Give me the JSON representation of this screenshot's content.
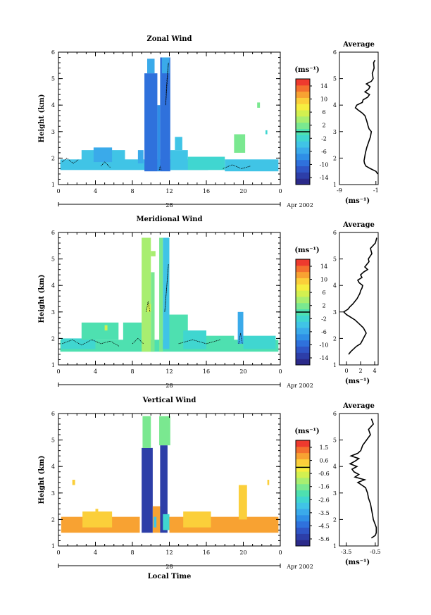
{
  "colors": {
    "colorbar": [
      "#2b2a8a",
      "#2d3ea8",
      "#2f55c6",
      "#2f71dc",
      "#2f8fe6",
      "#3aaaea",
      "#40c4e6",
      "#40d6d0",
      "#4ee0b0",
      "#7ae890",
      "#a8ee70",
      "#d2f050",
      "#f6ee40",
      "#fbcf3a",
      "#f8a232",
      "#f4702e",
      "#ee3a2e"
    ],
    "contour": "#000000",
    "axis": "#000000",
    "background": "#ffffff"
  },
  "chart_data": [
    {
      "type": "heatmap",
      "title": "Zonal Wind",
      "ylabel": "Height (km)",
      "xlim": [
        0,
        24
      ],
      "ylim": [
        1,
        6
      ],
      "x_ticks": [
        "0",
        "4",
        "8",
        "12",
        "16",
        "20",
        "0"
      ],
      "y_ticks": [
        "1",
        "2",
        "3",
        "4",
        "5",
        "6"
      ],
      "date_day": "28",
      "date_label": "Apr 2002",
      "colorbar": {
        "unit": "(ms⁻¹)",
        "ticks": [
          "14",
          "10",
          "6",
          "2",
          "-2",
          "-6",
          "-10",
          "-14"
        ],
        "range": [
          -16,
          16
        ]
      },
      "blocks": [
        {
          "x0": 0.2,
          "x1": 16.2,
          "y0": 1.55,
          "y1": 1.95,
          "v": -3
        },
        {
          "x0": 2.5,
          "x1": 7.2,
          "y0": 1.9,
          "y1": 2.3,
          "v": -4
        },
        {
          "x0": 3.8,
          "x1": 5.8,
          "y0": 1.85,
          "y1": 2.4,
          "v": -6
        },
        {
          "x0": 8.6,
          "x1": 9.2,
          "y0": 1.8,
          "y1": 2.3,
          "v": -6
        },
        {
          "x0": 9.3,
          "x1": 10.7,
          "y0": 1.5,
          "y1": 5.2,
          "v": -10
        },
        {
          "x0": 9.6,
          "x1": 10.4,
          "y0": 5.2,
          "y1": 5.75,
          "v": -6
        },
        {
          "x0": 10.7,
          "x1": 11.0,
          "y0": 1.5,
          "y1": 4.0,
          "v": -8
        },
        {
          "x0": 11.0,
          "x1": 12.1,
          "y0": 1.5,
          "y1": 5.8,
          "v": -10
        },
        {
          "x0": 11.2,
          "x1": 12.0,
          "y0": 5.2,
          "y1": 5.8,
          "v": -6
        },
        {
          "x0": 12.1,
          "x1": 14.0,
          "y0": 1.55,
          "y1": 2.3,
          "v": -4
        },
        {
          "x0": 12.6,
          "x1": 13.4,
          "y0": 2.3,
          "y1": 2.8,
          "v": -3
        },
        {
          "x0": 14.0,
          "x1": 18.0,
          "y0": 1.55,
          "y1": 2.05,
          "v": -2
        },
        {
          "x0": 18.0,
          "x1": 23.8,
          "y0": 1.5,
          "y1": 1.95,
          "v": -3
        },
        {
          "x0": 19.0,
          "x1": 20.2,
          "y0": 2.2,
          "y1": 2.9,
          "v": 2
        },
        {
          "x0": 22.4,
          "x1": 22.6,
          "y0": 2.9,
          "y1": 3.05,
          "v": -1
        },
        {
          "x0": 21.5,
          "x1": 21.8,
          "y0": 3.9,
          "y1": 4.1,
          "v": 1
        }
      ],
      "contours": [
        {
          "x": [
            0.4,
            0.9,
            1.6,
            2.2
          ],
          "y": [
            1.85,
            2.0,
            1.8,
            1.95
          ]
        },
        {
          "x": [
            4.6,
            5.0,
            5.6
          ],
          "y": [
            1.7,
            1.85,
            1.65
          ]
        },
        {
          "x": [
            11.6,
            11.75,
            11.9,
            11.7,
            11.6
          ],
          "y": [
            4.0,
            4.8,
            5.6,
            4.8,
            4.0
          ]
        },
        {
          "x": [
            17.8,
            18.8,
            19.8,
            20.8
          ],
          "y": [
            1.6,
            1.75,
            1.6,
            1.7
          ]
        },
        {
          "x": [
            10.9,
            11.0,
            11.1
          ],
          "y": [
            1.55,
            1.7,
            1.55
          ]
        }
      ],
      "profile": {
        "title": "Average",
        "xlim": [
          -9,
          -0.5
        ],
        "x_ticks": [
          "-9",
          "-1"
        ],
        "xlabel": "(ms⁻¹)",
        "height": [
          1.4,
          1.5,
          1.6,
          1.7,
          1.8,
          1.9,
          2.0,
          2.2,
          2.4,
          2.6,
          2.8,
          3.0,
          3.1,
          3.2,
          3.4,
          3.6,
          3.7,
          3.8,
          3.9,
          4.0,
          4.1,
          4.2,
          4.3,
          4.4,
          4.5,
          4.6,
          4.7,
          4.8,
          4.9,
          5.0,
          5.2,
          5.4,
          5.6,
          5.7
        ],
        "value": [
          -0.6,
          -1.0,
          -2.2,
          -3.2,
          -3.5,
          -3.6,
          -3.5,
          -3.3,
          -3.0,
          -2.6,
          -2.2,
          -2.0,
          -2.5,
          -2.7,
          -3.0,
          -3.4,
          -4.0,
          -4.8,
          -5.5,
          -5.2,
          -4.0,
          -3.8,
          -2.8,
          -2.4,
          -3.4,
          -2.6,
          -2.3,
          -3.1,
          -2.0,
          -1.6,
          -1.8,
          -1.4,
          -1.5,
          -1.2
        ]
      }
    },
    {
      "type": "heatmap",
      "title": "Meridional Wind",
      "ylabel": "Height (km)",
      "xlim": [
        0,
        24
      ],
      "ylim": [
        1,
        6
      ],
      "x_ticks": [
        "0",
        "4",
        "8",
        "12",
        "16",
        "20",
        "0"
      ],
      "y_ticks": [
        "1",
        "2",
        "3",
        "4",
        "5",
        "6"
      ],
      "date_day": "28",
      "date_label": "Apr 2002",
      "colorbar": {
        "unit": "(ms⁻¹)",
        "ticks": [
          "14",
          "10",
          "6",
          "2",
          "-2",
          "-6",
          "-10",
          "-14"
        ],
        "range": [
          -16,
          16
        ]
      },
      "blocks": [
        {
          "x0": 0.2,
          "x1": 23.8,
          "y0": 1.5,
          "y1": 1.95,
          "v": 0
        },
        {
          "x0": 0.3,
          "x1": 4.0,
          "y0": 1.6,
          "y1": 2.0,
          "v": -1
        },
        {
          "x0": 2.5,
          "x1": 6.5,
          "y0": 1.95,
          "y1": 2.6,
          "v": 0
        },
        {
          "x0": 5.0,
          "x1": 5.3,
          "y0": 2.3,
          "y1": 2.5,
          "v": 5
        },
        {
          "x0": 7.0,
          "x1": 9.0,
          "y0": 1.7,
          "y1": 2.6,
          "v": 0
        },
        {
          "x0": 9.0,
          "x1": 10.0,
          "y0": 1.5,
          "y1": 5.8,
          "v": 3
        },
        {
          "x0": 10.0,
          "x1": 10.4,
          "y0": 1.5,
          "y1": 4.5,
          "v": 1
        },
        {
          "x0": 9.6,
          "x1": 10.0,
          "y0": 3.0,
          "y1": 3.3,
          "v": 6
        },
        {
          "x0": 10.0,
          "x1": 10.5,
          "y0": 5.1,
          "y1": 5.3,
          "v": 3
        },
        {
          "x0": 10.9,
          "x1": 11.3,
          "y0": 1.5,
          "y1": 5.8,
          "v": 2
        },
        {
          "x0": 11.3,
          "x1": 12.0,
          "y0": 1.6,
          "y1": 5.8,
          "v": -3
        },
        {
          "x0": 12.0,
          "x1": 14.0,
          "y0": 1.6,
          "y1": 2.9,
          "v": 0
        },
        {
          "x0": 13.5,
          "x1": 16.0,
          "y0": 1.6,
          "y1": 2.3,
          "v": -1
        },
        {
          "x0": 16.0,
          "x1": 19.0,
          "y0": 1.6,
          "y1": 2.1,
          "v": 0
        },
        {
          "x0": 19.4,
          "x1": 20.0,
          "y0": 1.8,
          "y1": 3.0,
          "v": -6
        },
        {
          "x0": 20.0,
          "x1": 23.5,
          "y0": 1.6,
          "y1": 2.1,
          "v": -1
        }
      ],
      "contours": [
        {
          "x": [
            0.4,
            1.5,
            2.5,
            3.6,
            4.6,
            5.6,
            6.6
          ],
          "y": [
            1.8,
            1.95,
            1.75,
            1.95,
            1.8,
            1.9,
            1.7
          ]
        },
        {
          "x": [
            8.0,
            8.6,
            9.2
          ],
          "y": [
            1.8,
            2.0,
            1.8
          ]
        },
        {
          "x": [
            11.5,
            11.7,
            11.9,
            11.7,
            11.5
          ],
          "y": [
            3.0,
            3.9,
            4.8,
            3.9,
            3.0
          ]
        },
        {
          "x": [
            9.5,
            9.7,
            9.9
          ],
          "y": [
            3.0,
            3.4,
            3.0
          ]
        },
        {
          "x": [
            13.0,
            14.5,
            16.0,
            17.5
          ],
          "y": [
            1.8,
            1.95,
            1.8,
            1.95
          ]
        },
        {
          "x": [
            19.5,
            19.7,
            19.9
          ],
          "y": [
            1.8,
            2.2,
            1.8
          ]
        }
      ],
      "profile": {
        "title": "Average",
        "xlim": [
          -1,
          4.5
        ],
        "x_ticks": [
          "0",
          "2",
          "4"
        ],
        "xlabel": "(ms⁻¹)",
        "height": [
          1.4,
          1.5,
          1.6,
          1.7,
          1.8,
          1.9,
          2.0,
          2.1,
          2.2,
          2.3,
          2.4,
          2.5,
          2.6,
          2.7,
          2.8,
          2.9,
          3.0,
          3.1,
          3.2,
          3.3,
          3.4,
          3.5,
          3.6,
          3.7,
          3.8,
          3.9,
          4.0,
          4.1,
          4.2,
          4.3,
          4.4,
          4.5,
          4.6,
          4.7,
          4.8,
          4.9,
          5.0,
          5.2,
          5.4,
          5.6,
          5.8
        ],
        "value": [
          0.3,
          0.6,
          1.0,
          1.4,
          2.0,
          2.2,
          2.4,
          2.6,
          2.8,
          2.6,
          2.4,
          2.0,
          1.6,
          1.2,
          0.6,
          0.0,
          -0.4,
          0.2,
          0.5,
          0.9,
          1.2,
          1.5,
          1.7,
          1.9,
          2.0,
          2.2,
          2.3,
          1.8,
          1.6,
          2.2,
          2.0,
          2.4,
          3.0,
          2.6,
          2.9,
          3.2,
          3.1,
          3.6,
          3.4,
          4.1,
          4.3
        ]
      }
    },
    {
      "type": "heatmap",
      "title": "Vertical Wind",
      "ylabel": "Height (km)",
      "xlabel": "Local Time",
      "xlim": [
        0,
        24
      ],
      "ylim": [
        1,
        6
      ],
      "x_ticks": [
        "0",
        "4",
        "8",
        "12",
        "16",
        "20",
        "0"
      ],
      "y_ticks": [
        "1",
        "2",
        "3",
        "4",
        "5",
        "6"
      ],
      "date_day": "28",
      "date_label": "Apr 2002",
      "colorbar": {
        "unit": "(ms⁻¹)",
        "ticks": [
          "1.5",
          "0.6",
          "-0.6",
          "-1.6",
          "-2.6",
          "-3.5",
          "-4.5",
          "-5.6"
        ],
        "range": [
          -6.1,
          2.1
        ]
      },
      "blocks": [
        {
          "x0": 0.3,
          "x1": 8.8,
          "y0": 1.5,
          "y1": 2.1,
          "v": 0.9
        },
        {
          "x0": 2.6,
          "x1": 5.8,
          "y0": 1.7,
          "y1": 2.3,
          "v": 0.3
        },
        {
          "x0": 1.5,
          "x1": 1.8,
          "y0": 3.3,
          "y1": 3.5,
          "v": 0.6
        },
        {
          "x0": 4.0,
          "x1": 4.3,
          "y0": 2.1,
          "y1": 2.4,
          "v": 0.3
        },
        {
          "x0": 9.0,
          "x1": 10.2,
          "y0": 1.5,
          "y1": 4.7,
          "v": -5.6
        },
        {
          "x0": 9.1,
          "x1": 10.0,
          "y0": 4.7,
          "y1": 5.9,
          "v": -1.3
        },
        {
          "x0": 10.2,
          "x1": 11.0,
          "y0": 1.5,
          "y1": 2.5,
          "v": 0.8
        },
        {
          "x0": 10.3,
          "x1": 10.6,
          "y0": 1.7,
          "y1": 2.1,
          "v": -3.0
        },
        {
          "x0": 11.0,
          "x1": 11.8,
          "y0": 1.5,
          "y1": 4.8,
          "v": -5.6
        },
        {
          "x0": 11.3,
          "x1": 12.0,
          "y0": 1.6,
          "y1": 2.2,
          "v": -2.5
        },
        {
          "x0": 10.9,
          "x1": 12.1,
          "y0": 4.8,
          "y1": 5.9,
          "v": -1.3
        },
        {
          "x0": 12.0,
          "x1": 23.8,
          "y0": 1.5,
          "y1": 2.1,
          "v": 0.9
        },
        {
          "x0": 13.5,
          "x1": 16.5,
          "y0": 1.7,
          "y1": 2.3,
          "v": 0.4
        },
        {
          "x0": 19.5,
          "x1": 20.4,
          "y0": 2.0,
          "y1": 3.3,
          "v": 0.3
        },
        {
          "x0": 22.6,
          "x1": 22.8,
          "y0": 3.3,
          "y1": 3.5,
          "v": 0.5
        }
      ],
      "contours": [],
      "profile": {
        "title": "Average",
        "xlim": [
          -4.2,
          -0.2
        ],
        "x_ticks": [
          "-3.5",
          "-0.5"
        ],
        "xlabel": "(ms⁻¹)",
        "height": [
          1.3,
          1.4,
          1.5,
          1.6,
          1.7,
          1.8,
          1.9,
          2.0,
          2.2,
          2.4,
          2.6,
          2.8,
          3.0,
          3.2,
          3.3,
          3.4,
          3.5,
          3.6,
          3.7,
          3.8,
          3.9,
          4.0,
          4.1,
          4.2,
          4.3,
          4.4,
          4.5,
          4.6,
          4.8,
          5.0,
          5.2,
          5.4,
          5.6,
          5.8
        ],
        "value": [
          -0.9,
          -0.5,
          -0.4,
          -0.4,
          -0.4,
          -0.5,
          -0.6,
          -0.7,
          -0.8,
          -0.9,
          -1.0,
          -1.2,
          -1.3,
          -1.5,
          -1.9,
          -2.3,
          -1.6,
          -2.6,
          -2.2,
          -2.7,
          -2.9,
          -2.4,
          -3.1,
          -2.6,
          -2.2,
          -3.0,
          -2.3,
          -2.0,
          -1.8,
          -1.4,
          -1.0,
          -1.2,
          -0.7,
          -0.9
        ]
      }
    }
  ]
}
